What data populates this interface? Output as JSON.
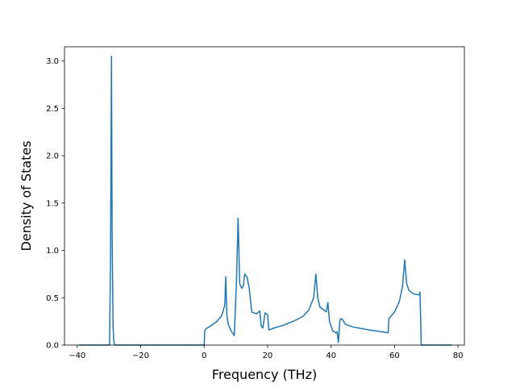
{
  "chart_data": {
    "type": "line",
    "xlabel": "Frequency (THz)",
    "ylabel": "Density of States",
    "xlim": [
      -44,
      82
    ],
    "ylim": [
      0,
      3.15
    ],
    "xticks": [
      -40,
      -20,
      0,
      20,
      40,
      60,
      80
    ],
    "yticks": [
      0.0,
      0.5,
      1.0,
      1.5,
      2.0,
      2.5,
      3.0
    ],
    "xtick_labels": [
      "−40",
      "−20",
      "0",
      "20",
      "40",
      "60",
      "80"
    ],
    "ytick_labels": [
      "0.0",
      "0.5",
      "1.0",
      "1.5",
      "2.0",
      "2.5",
      "3.0"
    ],
    "grid": false,
    "color": "#1f77b4",
    "series": [
      {
        "x": [
          -39.5,
          -29.8,
          -29.5,
          -29.2,
          -29.0,
          -28.7,
          -28.5,
          -28.2,
          -27.8,
          -27.5,
          -10,
          0,
          0.2,
          0.5,
          2,
          4,
          5.5,
          6.5,
          6.8,
          7.2,
          7.6,
          8.5,
          9.5,
          10.2,
          10.7,
          11.2,
          11.8,
          12.3,
          12.8,
          13.5,
          14.2,
          15,
          16.5,
          17.5,
          18,
          18.5,
          19.2,
          20,
          20.4,
          22,
          25,
          28,
          31,
          33,
          34.5,
          35.2,
          35.8,
          36.5,
          38.5,
          39,
          39.5,
          40.5,
          41.5,
          41.9,
          42.3,
          42.8,
          43.4,
          44.5,
          47,
          52,
          58,
          58.2,
          60,
          61.5,
          62.5,
          63.2,
          63.8,
          64.5,
          66,
          67.8,
          68,
          68.2,
          68.4,
          70,
          78
        ],
        "y": [
          0,
          0,
          0.9,
          3.05,
          1.2,
          0.2,
          0.05,
          0.0,
          0.0,
          0.0,
          0,
          0,
          0.15,
          0.17,
          0.2,
          0.25,
          0.31,
          0.42,
          0.72,
          0.3,
          0.22,
          0.15,
          0.1,
          0.68,
          1.34,
          0.65,
          0.6,
          0.62,
          0.75,
          0.72,
          0.6,
          0.35,
          0.33,
          0.36,
          0.2,
          0.18,
          0.34,
          0.32,
          0.16,
          0.18,
          0.21,
          0.25,
          0.3,
          0.37,
          0.5,
          0.75,
          0.5,
          0.4,
          0.35,
          0.45,
          0.25,
          0.15,
          0.13,
          0.14,
          0.03,
          0.27,
          0.28,
          0.22,
          0.19,
          0.16,
          0.13,
          0.28,
          0.35,
          0.46,
          0.62,
          0.9,
          0.65,
          0.58,
          0.54,
          0.53,
          0.56,
          0.3,
          0.0,
          0.0,
          0.0
        ]
      }
    ]
  }
}
